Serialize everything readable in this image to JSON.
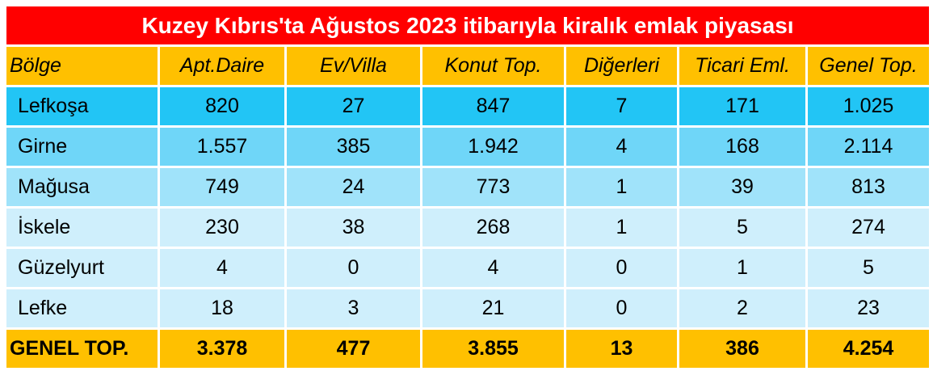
{
  "title": "Kuzey Kıbrıs'ta Ağustos 2023 itibarıyla kiralık emlak piyasası",
  "table": {
    "header": [
      "Bölge",
      "Apt.Daire",
      "Ev/Villa",
      "Konut Top.",
      "Diğerleri",
      "Ticari Eml.",
      "Genel Top."
    ],
    "rows": [
      [
        "Lefkoşa",
        "820",
        "27",
        "847",
        "7",
        "171",
        "1.025"
      ],
      [
        "Girne",
        "1.557",
        "385",
        "1.942",
        "4",
        "168",
        "2.114"
      ],
      [
        "Mağusa",
        "749",
        "24",
        "773",
        "1",
        "39",
        "813"
      ],
      [
        "İskele",
        "230",
        "38",
        "268",
        "1",
        "5",
        "274"
      ],
      [
        "Güzelyurt",
        "4",
        "0",
        "4",
        "0",
        "1",
        "5"
      ],
      [
        "Lefke",
        "18",
        "3",
        "21",
        "0",
        "2",
        "23"
      ]
    ],
    "total": [
      "GENEL TOP.",
      "3.378",
      "477",
      "3.855",
      "13",
      "386",
      "4.254"
    ]
  }
}
